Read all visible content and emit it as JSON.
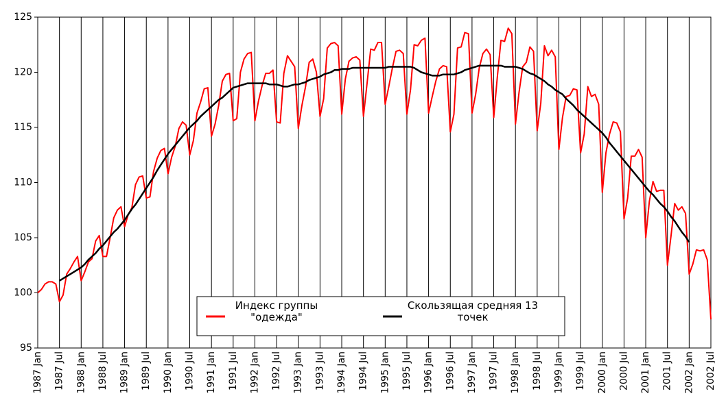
{
  "chart_data": {
    "type": "line",
    "categories": [
      "1987 Jan",
      null,
      null,
      null,
      null,
      null,
      "1987 Jul",
      null,
      null,
      null,
      null,
      null,
      "1988 Jan",
      null,
      null,
      null,
      null,
      null,
      "1988 Jul",
      null,
      null,
      null,
      null,
      null,
      "1989 Jan",
      null,
      null,
      null,
      null,
      null,
      "1989 Jul",
      null,
      null,
      null,
      null,
      null,
      "1990 Jan",
      null,
      null,
      null,
      null,
      null,
      "1990 Jul",
      null,
      null,
      null,
      null,
      null,
      "1991 Jan",
      null,
      null,
      null,
      null,
      null,
      "1991 Jul",
      null,
      null,
      null,
      null,
      null,
      "1992 Jan",
      null,
      null,
      null,
      null,
      null,
      "1992 Jul",
      null,
      null,
      null,
      null,
      null,
      "1993 Jan",
      null,
      null,
      null,
      null,
      null,
      "1993 Jul",
      null,
      null,
      null,
      null,
      null,
      "1994 Jan",
      null,
      null,
      null,
      null,
      null,
      "1994 Jul",
      null,
      null,
      null,
      null,
      null,
      "1995 Jan",
      null,
      null,
      null,
      null,
      null,
      "1995 Jul",
      null,
      null,
      null,
      null,
      null,
      "1996 Jan",
      null,
      null,
      null,
      null,
      null,
      "1996 Jul",
      null,
      null,
      null,
      null,
      null,
      "1997 Jan",
      null,
      null,
      null,
      null,
      null,
      "1997 Jul",
      null,
      null,
      null,
      null,
      null,
      "1998 Jan",
      null,
      null,
      null,
      null,
      null,
      "1998 Jul",
      null,
      null,
      null,
      null,
      null,
      "1999 Jan",
      null,
      null,
      null,
      null,
      null,
      "1999 Jul",
      null,
      null,
      null,
      null,
      null,
      "2000 Jan",
      null,
      null,
      null,
      null,
      null,
      "2000 Jul",
      null,
      null,
      null,
      null,
      null,
      "2001 Jan",
      null,
      null,
      null,
      null,
      null,
      "2001 Jul",
      null,
      null,
      null,
      null,
      null,
      "2002 Jan",
      null,
      null,
      null,
      null,
      null,
      "2002 Jul"
    ],
    "series": [
      {
        "name": "Индекс группы \"одежда\"",
        "color": "#ff0000",
        "values": [
          100.0,
          100.3,
          100.8,
          101.0,
          101.0,
          100.8,
          99.2,
          99.8,
          101.7,
          102.2,
          102.8,
          103.3,
          101.1,
          101.9,
          102.8,
          103.1,
          104.7,
          105.2,
          103.3,
          103.3,
          105.0,
          106.8,
          107.5,
          107.8,
          106.0,
          107.1,
          107.7,
          109.8,
          110.5,
          110.6,
          108.6,
          108.7,
          111.0,
          112.2,
          112.9,
          113.1,
          110.8,
          112.3,
          113.3,
          114.9,
          115.5,
          115.2,
          112.5,
          113.8,
          116.3,
          117.3,
          118.5,
          118.6,
          114.2,
          115.3,
          117.0,
          119.2,
          119.8,
          119.9,
          115.6,
          115.8,
          120.0,
          121.2,
          121.7,
          121.8,
          115.6,
          117.4,
          118.8,
          119.9,
          119.9,
          120.2,
          115.5,
          115.4,
          119.9,
          121.5,
          121.0,
          120.5,
          114.9,
          117.0,
          118.7,
          120.9,
          121.2,
          120.0,
          116.0,
          117.6,
          122.2,
          122.6,
          122.7,
          122.4,
          116.2,
          119.4,
          121.0,
          121.3,
          121.4,
          121.1,
          116.0,
          119.0,
          122.1,
          122.0,
          122.7,
          122.7,
          117.1,
          118.7,
          120.4,
          121.9,
          122.0,
          121.7,
          116.2,
          118.4,
          122.5,
          122.4,
          122.9,
          123.1,
          116.3,
          117.8,
          119.2,
          120.3,
          120.6,
          120.5,
          114.6,
          116.2,
          122.2,
          122.3,
          123.6,
          123.5,
          116.3,
          118.0,
          120.4,
          121.7,
          122.1,
          121.6,
          115.9,
          119.6,
          122.9,
          122.8,
          124.0,
          123.5,
          115.3,
          118.2,
          120.5,
          120.9,
          122.3,
          121.9,
          114.7,
          117.2,
          122.4,
          121.5,
          122.0,
          121.4,
          113.0,
          115.9,
          117.8,
          117.9,
          118.5,
          118.4,
          112.7,
          114.4,
          118.7,
          117.8,
          118.0,
          117.1,
          109.1,
          112.7,
          114.4,
          115.5,
          115.4,
          114.6,
          106.7,
          108.6,
          112.4,
          112.4,
          113.0,
          112.3,
          105.0,
          108.3,
          110.1,
          109.2,
          109.3,
          109.3,
          102.5,
          105.2,
          108.1,
          107.5,
          107.8,
          107.2,
          101.7,
          102.6,
          103.9,
          103.8,
          103.9,
          103.0,
          97.6
        ]
      },
      {
        "name": "Скользящая средняя 13 точек",
        "color": "#000000",
        "values": [
          null,
          null,
          null,
          null,
          null,
          null,
          101.1,
          101.3,
          101.5,
          101.7,
          101.9,
          102.1,
          102.3,
          102.6,
          103.0,
          103.3,
          103.6,
          104.0,
          104.3,
          104.7,
          105.1,
          105.5,
          105.8,
          106.2,
          106.6,
          107.1,
          107.6,
          108.0,
          108.5,
          109.0,
          109.5,
          110.0,
          110.5,
          111.1,
          111.6,
          112.1,
          112.6,
          113.0,
          113.4,
          113.8,
          114.2,
          114.6,
          115.0,
          115.3,
          115.6,
          116.0,
          116.3,
          116.6,
          116.9,
          117.2,
          117.5,
          117.7,
          118.0,
          118.3,
          118.6,
          118.7,
          118.8,
          118.9,
          119.0,
          119.0,
          119.0,
          119.0,
          119.0,
          119.0,
          118.9,
          118.9,
          118.9,
          118.8,
          118.7,
          118.7,
          118.8,
          118.9,
          118.9,
          119.0,
          119.1,
          119.3,
          119.4,
          119.5,
          119.6,
          119.8,
          119.9,
          120.0,
          120.2,
          120.2,
          120.3,
          120.3,
          120.3,
          120.4,
          120.4,
          120.4,
          120.4,
          120.4,
          120.4,
          120.4,
          120.4,
          120.4,
          120.4,
          120.5,
          120.5,
          120.5,
          120.5,
          120.5,
          120.5,
          120.5,
          120.4,
          120.2,
          120.0,
          119.9,
          119.8,
          119.7,
          119.7,
          119.7,
          119.8,
          119.8,
          119.8,
          119.8,
          119.9,
          120.0,
          120.2,
          120.3,
          120.4,
          120.5,
          120.6,
          120.6,
          120.6,
          120.6,
          120.6,
          120.6,
          120.6,
          120.5,
          120.5,
          120.5,
          120.5,
          120.4,
          120.3,
          120.1,
          119.9,
          119.8,
          119.6,
          119.4,
          119.2,
          118.9,
          118.7,
          118.4,
          118.2,
          118.0,
          117.6,
          117.3,
          117.0,
          116.6,
          116.3,
          116.0,
          115.7,
          115.4,
          115.1,
          114.8,
          114.5,
          114.1,
          113.6,
          113.2,
          112.8,
          112.4,
          112.0,
          111.6,
          111.2,
          110.8,
          110.4,
          110.0,
          109.6,
          109.2,
          108.9,
          108.5,
          108.1,
          107.8,
          107.4,
          106.9,
          106.5,
          106.0,
          105.5,
          105.1,
          104.6,
          null,
          null,
          null,
          null,
          null,
          null
        ]
      }
    ],
    "ylim": [
      95,
      125
    ],
    "yticks": [
      95,
      100,
      105,
      110,
      115,
      120,
      125
    ],
    "grid": true,
    "legend": "bottom"
  }
}
